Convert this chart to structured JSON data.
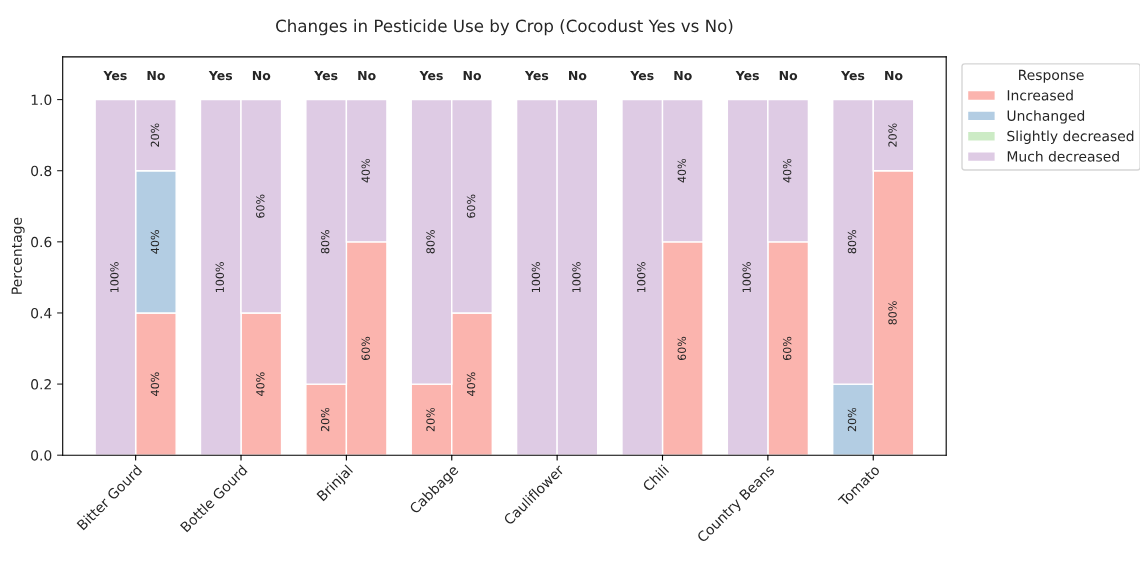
{
  "chart_data": {
    "type": "bar",
    "title": "Changes in Pesticide Use by Crop (Cocodust Yes vs No)",
    "ylabel": "Percentage",
    "legend_title": "Response",
    "categories": [
      "Yes",
      "No",
      "Yes",
      "No",
      "Yes",
      "No",
      "Yes",
      "No",
      "Yes",
      "No",
      "Yes",
      "No",
      "Yes",
      "No",
      "Yes",
      "No"
    ],
    "annotations": [
      "Bitter Gourd",
      "Bottle Gourd",
      "Brinjal",
      "Cabbage",
      "Cauliflower",
      "Chili",
      "Country Beans",
      "Tomato"
    ],
    "stacked": true,
    "legend": "top right",
    "grid": false,
    "ylim": [
      0,
      1.12
    ],
    "yticks": [
      {
        "value": 0,
        "label": "0.0"
      },
      {
        "value": 0.2,
        "label": "0.2"
      },
      {
        "value": 0.4,
        "label": "0.4"
      },
      {
        "value": 0.6,
        "label": "0.6"
      },
      {
        "value": 0.8,
        "label": "0.8"
      },
      {
        "value": 1.0,
        "label": "1.0"
      }
    ],
    "series": [
      {
        "name": "Increased",
        "color": "#fbb4ae",
        "values": [
          0,
          0.4,
          0,
          0.4,
          0.2,
          0.6,
          0.2,
          0.4,
          0,
          0,
          0,
          0.6,
          0,
          0.6,
          0,
          0.8
        ],
        "value_labels": [
          null,
          "40%",
          null,
          "40%",
          "20%",
          "60%",
          "20%",
          "40%",
          null,
          null,
          null,
          "60%",
          null,
          "60%",
          null,
          "80%"
        ]
      },
      {
        "name": "Unchanged",
        "color": "#b3cde3",
        "values": [
          0,
          0.4,
          0,
          0,
          0,
          0,
          0,
          0,
          0,
          0,
          0,
          0,
          0,
          0,
          0.2,
          0
        ],
        "value_labels": [
          null,
          "40%",
          null,
          null,
          null,
          null,
          null,
          null,
          null,
          null,
          null,
          null,
          null,
          null,
          "20%",
          null
        ]
      },
      {
        "name": "Slightly decreased",
        "color": "#ccebc5",
        "values": [
          0,
          0,
          0,
          0,
          0,
          0,
          0,
          0,
          0,
          0,
          0,
          0,
          0,
          0,
          0,
          0
        ]
      },
      {
        "name": "Much decreased",
        "color": "#decbe4",
        "values": [
          1.0,
          0.2,
          1.0,
          0.6,
          0.8,
          0.4,
          0.8,
          0.6,
          1.0,
          1.0,
          1.0,
          0.4,
          1.0,
          0.4,
          0.8,
          0.2
        ],
        "value_labels": [
          "100%",
          "20%",
          "100%",
          "60%",
          "80%",
          "40%",
          "80%",
          "60%",
          "100%",
          "100%",
          "100%",
          "40%",
          "100%",
          "40%",
          "80%",
          "20%"
        ]
      }
    ]
  }
}
